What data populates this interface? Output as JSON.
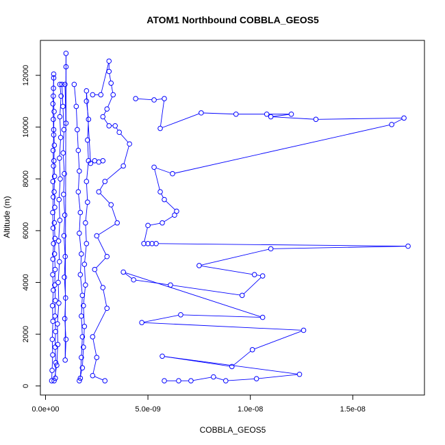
{
  "chart_data": {
    "type": "scatter",
    "title": "ATOM1 Northbound COBBLA_GEOS5",
    "xlabel": "COBBLA_GEOS5",
    "ylabel": "Altitude (m)",
    "xlim": [
      -2.5e-10,
      1.85e-08
    ],
    "ylim": [
      -350,
      13350
    ],
    "x_ticks": [
      {
        "value": 0,
        "label": "0.0e+00"
      },
      {
        "value": 5e-09,
        "label": "5.0e-09"
      },
      {
        "value": 1e-08,
        "label": "1.0e-08"
      },
      {
        "value": 1.5e-08,
        "label": "1.5e-08"
      }
    ],
    "y_ticks": [
      {
        "value": 0,
        "label": "0"
      },
      {
        "value": 2000,
        "label": "2000"
      },
      {
        "value": 4000,
        "label": "4000"
      },
      {
        "value": 6000,
        "label": "6000"
      },
      {
        "value": 8000,
        "label": "8000"
      },
      {
        "value": 10000,
        "label": "10000"
      },
      {
        "value": 12000,
        "label": "12000"
      }
    ],
    "series_color": "#0000ff",
    "grid": false,
    "legend": "none",
    "marker": "open-circle",
    "connected": true,
    "series": [
      {
        "points": [
          [
            3e-10,
            200
          ],
          [
            3.2e-10,
            600
          ],
          [
            3.5e-10,
            1200
          ],
          [
            3.3e-10,
            1800
          ],
          [
            3.6e-10,
            2500
          ],
          [
            3.4e-10,
            3100
          ],
          [
            3.8e-10,
            3700
          ],
          [
            3.5e-10,
            4300
          ],
          [
            3.6e-10,
            4900
          ],
          [
            3.9e-10,
            5500
          ],
          [
            3.7e-10,
            6100
          ],
          [
            3.5e-10,
            6700
          ],
          [
            3.8e-10,
            7300
          ],
          [
            3.6e-10,
            7900
          ],
          [
            3.9e-10,
            8500
          ],
          [
            3.7e-10,
            9100
          ],
          [
            4e-10,
            9700
          ],
          [
            3.8e-10,
            10300
          ],
          [
            3.6e-10,
            10900
          ],
          [
            3.9e-10,
            11500
          ],
          [
            4e-10,
            12050
          ],
          [
            4e-10,
            11900
          ],
          [
            3.8e-10,
            11200
          ],
          [
            4.2e-10,
            10600
          ],
          [
            4e-10,
            9900
          ],
          [
            4.3e-10,
            9300
          ],
          [
            4.1e-10,
            8700
          ],
          [
            4.4e-10,
            8100
          ],
          [
            4.2e-10,
            7500
          ],
          [
            4.5e-10,
            6900
          ],
          [
            4.3e-10,
            6300
          ],
          [
            4.6e-10,
            5700
          ],
          [
            4.4e-10,
            5100
          ],
          [
            4.7e-10,
            4500
          ],
          [
            4.5e-10,
            3900
          ],
          [
            4.8e-10,
            3300
          ],
          [
            4.6e-10,
            2700
          ],
          [
            4.9e-10,
            2100
          ],
          [
            4.7e-10,
            1500
          ],
          [
            5e-10,
            900
          ],
          [
            4.8e-10,
            300
          ],
          [
            4.2e-10,
            200
          ],
          [
            5.5e-10,
            800
          ],
          [
            6e-10,
            1600
          ],
          [
            5.8e-10,
            2400
          ],
          [
            6.5e-10,
            3200
          ],
          [
            6.2e-10,
            4000
          ],
          [
            6.8e-10,
            4800
          ],
          [
            6.4e-10,
            5600
          ],
          [
            7e-10,
            6400
          ],
          [
            6.6e-10,
            7200
          ],
          [
            7.2e-10,
            8000
          ],
          [
            6.8e-10,
            8800
          ],
          [
            7.4e-10,
            9600
          ],
          [
            7e-10,
            10400
          ],
          [
            7.6e-10,
            11200
          ],
          [
            7e-10,
            11650
          ],
          [
            8e-10,
            11650
          ],
          [
            8.5e-10,
            10800
          ],
          [
            9e-10,
            9900
          ],
          [
            8.6e-10,
            9000
          ],
          [
            9.2e-10,
            8200
          ],
          [
            8.8e-10,
            7400
          ],
          [
            9.4e-10,
            6600
          ],
          [
            9e-10,
            5800
          ],
          [
            9.6e-10,
            5000
          ],
          [
            9.2e-10,
            4200
          ],
          [
            9.8e-10,
            3400
          ],
          [
            9.4e-10,
            2600
          ],
          [
            1e-09,
            1800
          ],
          [
            9.6e-10,
            1000
          ],
          [
            1e-09,
            12850
          ],
          [
            1e-09,
            12330
          ],
          [
            1e-09,
            10150
          ],
          [
            9.5e-10,
            11650
          ]
        ]
      },
      {
        "points": [
          [
            1.4e-09,
            11650
          ],
          [
            1.5e-09,
            10800
          ],
          [
            1.55e-09,
            9900
          ],
          [
            1.6e-09,
            9100
          ],
          [
            1.65e-09,
            8300
          ],
          [
            1.6e-09,
            7500
          ],
          [
            1.7e-09,
            6700
          ],
          [
            1.65e-09,
            5900
          ],
          [
            1.75e-09,
            5100
          ],
          [
            1.7e-09,
            4300
          ],
          [
            1.8e-09,
            3500
          ],
          [
            1.75e-09,
            2700
          ],
          [
            1.8e-09,
            1900
          ],
          [
            1.75e-09,
            1100
          ],
          [
            1.7e-09,
            300
          ],
          [
            1.65e-09,
            200
          ],
          [
            1.8e-09,
            700
          ],
          [
            1.85e-09,
            1500
          ],
          [
            1.9e-09,
            2300
          ],
          [
            1.85e-09,
            3100
          ],
          [
            1.95e-09,
            3900
          ],
          [
            1.9e-09,
            4700
          ],
          [
            2e-09,
            5500
          ],
          [
            1.95e-09,
            6300
          ],
          [
            2.05e-09,
            7100
          ],
          [
            2e-09,
            7900
          ],
          [
            2.1e-09,
            8700
          ],
          [
            2.05e-09,
            9500
          ],
          [
            2.1e-09,
            10300
          ],
          [
            2e-09,
            11000
          ],
          [
            2e-09,
            11400
          ],
          [
            2.2e-09,
            8600
          ],
          [
            2.4e-09,
            8700
          ],
          [
            2.6e-09,
            8650
          ],
          [
            2.8e-09,
            8700
          ]
        ]
      },
      {
        "points": [
          [
            2.3e-09,
            11250
          ],
          [
            2.7e-09,
            11250
          ],
          [
            3.1e-09,
            12550
          ],
          [
            3.1e-09,
            12150
          ],
          [
            3.2e-09,
            11700
          ],
          [
            3.3e-09,
            11250
          ],
          [
            3e-09,
            10700
          ],
          [
            2.8e-09,
            10400
          ],
          [
            3.1e-09,
            10050
          ],
          [
            3.4e-09,
            10050
          ],
          [
            3.6e-09,
            9800
          ],
          [
            4.1e-09,
            9350
          ],
          [
            3.8e-09,
            8500
          ],
          [
            2.9e-09,
            7900
          ],
          [
            2.6e-09,
            7500
          ],
          [
            3.2e-09,
            7000
          ],
          [
            3.5e-09,
            6300
          ],
          [
            2.5e-09,
            5800
          ],
          [
            3e-09,
            5000
          ],
          [
            2.4e-09,
            4500
          ],
          [
            2.8e-09,
            3800
          ],
          [
            3e-09,
            3000
          ],
          [
            2.3e-09,
            1900
          ],
          [
            2.5e-09,
            1100
          ],
          [
            2.3e-09,
            400
          ],
          [
            2.9e-09,
            200
          ]
        ]
      },
      {
        "points": [
          [
            4.4e-09,
            11100
          ],
          [
            5.3e-09,
            11050
          ],
          [
            5.8e-09,
            11100
          ],
          [
            5.6e-09,
            9950
          ],
          [
            7.6e-09,
            10550
          ],
          [
            9.3e-09,
            10500
          ],
          [
            1.08e-08,
            10500
          ],
          [
            1.2e-08,
            10500
          ],
          [
            1.1e-08,
            10400
          ],
          [
            1.32e-08,
            10300
          ],
          [
            1.75e-08,
            10350
          ],
          [
            1.69e-08,
            10100
          ],
          [
            6.2e-09,
            8200
          ],
          [
            5.3e-09,
            8450
          ],
          [
            5.6e-09,
            7500
          ],
          [
            5.8e-09,
            7200
          ],
          [
            6.4e-09,
            6750
          ],
          [
            6.3e-09,
            6600
          ],
          [
            5.7e-09,
            6300
          ],
          [
            5e-09,
            6200
          ],
          [
            4.8e-09,
            5500
          ],
          [
            5e-09,
            5500
          ],
          [
            5.2e-09,
            5500
          ],
          [
            5.4e-09,
            5500
          ],
          [
            1.77e-08,
            5400
          ],
          [
            1.1e-08,
            5300
          ],
          [
            7.5e-09,
            4650
          ],
          [
            1.02e-08,
            4300
          ],
          [
            1.06e-08,
            4250
          ],
          [
            9.6e-09,
            3500
          ],
          [
            6.1e-09,
            3900
          ],
          [
            4.3e-09,
            4100
          ],
          [
            3.8e-09,
            4400
          ],
          [
            1.06e-08,
            2650
          ],
          [
            6.6e-09,
            2750
          ],
          [
            4.7e-09,
            2450
          ],
          [
            1.26e-08,
            2150
          ],
          [
            1.01e-08,
            1400
          ],
          [
            9.1e-09,
            750
          ],
          [
            5.7e-09,
            1150
          ],
          [
            1.24e-08,
            450
          ],
          [
            1.03e-08,
            280
          ],
          [
            8.8e-09,
            200
          ],
          [
            8.2e-09,
            350
          ],
          [
            7.1e-09,
            200
          ],
          [
            6.5e-09,
            200
          ],
          [
            5.8e-09,
            200
          ]
        ]
      }
    ]
  }
}
